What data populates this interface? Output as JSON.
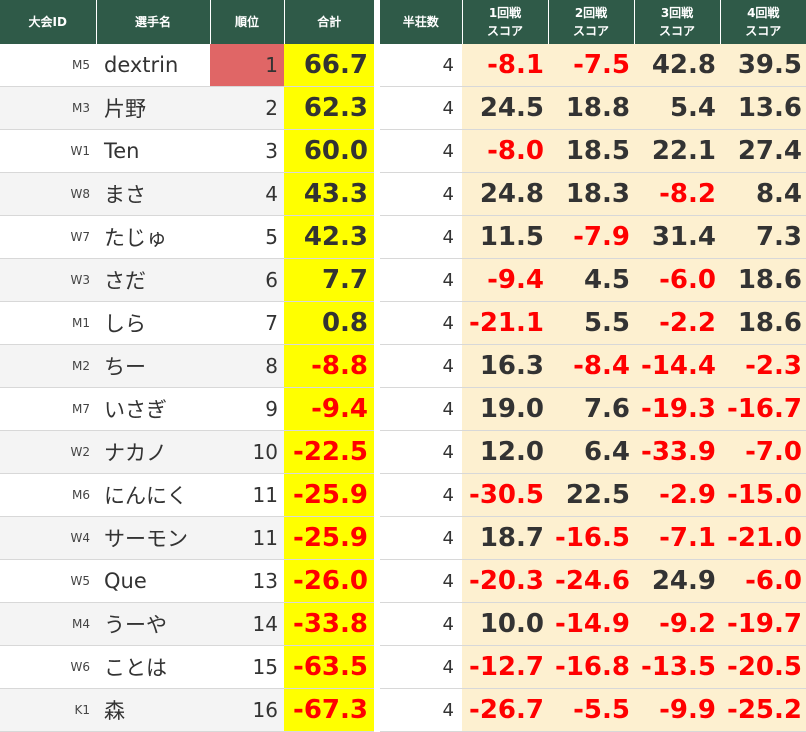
{
  "left_headers": {
    "event_id": "大会ID",
    "player_name": "選手名",
    "rank": "順位",
    "total": "合計"
  },
  "right_headers": {
    "games": "半荘数",
    "rounds": [
      {
        "line1": "1回戦",
        "line2": "スコア"
      },
      {
        "line1": "2回戦",
        "line2": "スコア"
      },
      {
        "line1": "3回戦",
        "line2": "スコア"
      },
      {
        "line1": "4回戦",
        "line2": "スコア"
      }
    ]
  },
  "colors": {
    "header_bg": "#2f5a48",
    "total_bg": "#ffff00",
    "score_bg": "#fdf0d0",
    "first_rank_bg": "#e06666",
    "negative_text": "#ff0000"
  },
  "rows": [
    {
      "id": "M5",
      "name": "dextrin",
      "rank": "1",
      "total": "66.7",
      "games": "4",
      "scores": [
        "-8.1",
        "-7.5",
        "42.8",
        "39.5"
      ]
    },
    {
      "id": "M3",
      "name": "片野",
      "rank": "2",
      "total": "62.3",
      "games": "4",
      "scores": [
        "24.5",
        "18.8",
        "5.4",
        "13.6"
      ]
    },
    {
      "id": "W1",
      "name": "Ten",
      "rank": "3",
      "total": "60.0",
      "games": "4",
      "scores": [
        "-8.0",
        "18.5",
        "22.1",
        "27.4"
      ]
    },
    {
      "id": "W8",
      "name": "まさ",
      "rank": "4",
      "total": "43.3",
      "games": "4",
      "scores": [
        "24.8",
        "18.3",
        "-8.2",
        "8.4"
      ]
    },
    {
      "id": "W7",
      "name": "たじゅ",
      "rank": "5",
      "total": "42.3",
      "games": "4",
      "scores": [
        "11.5",
        "-7.9",
        "31.4",
        "7.3"
      ]
    },
    {
      "id": "W3",
      "name": "さだ",
      "rank": "6",
      "total": "7.7",
      "games": "4",
      "scores": [
        "-9.4",
        "4.5",
        "-6.0",
        "18.6"
      ]
    },
    {
      "id": "M1",
      "name": "しら",
      "rank": "7",
      "total": "0.8",
      "games": "4",
      "scores": [
        "-21.1",
        "5.5",
        "-2.2",
        "18.6"
      ]
    },
    {
      "id": "M2",
      "name": "ちー",
      "rank": "8",
      "total": "-8.8",
      "games": "4",
      "scores": [
        "16.3",
        "-8.4",
        "-14.4",
        "-2.3"
      ]
    },
    {
      "id": "M7",
      "name": "いさぎ",
      "rank": "9",
      "total": "-9.4",
      "games": "4",
      "scores": [
        "19.0",
        "7.6",
        "-19.3",
        "-16.7"
      ]
    },
    {
      "id": "W2",
      "name": "ナカノ",
      "rank": "10",
      "total": "-22.5",
      "games": "4",
      "scores": [
        "12.0",
        "6.4",
        "-33.9",
        "-7.0"
      ]
    },
    {
      "id": "M6",
      "name": "にんにく",
      "rank": "11",
      "total": "-25.9",
      "games": "4",
      "scores": [
        "-30.5",
        "22.5",
        "-2.9",
        "-15.0"
      ]
    },
    {
      "id": "W4",
      "name": "サーモン",
      "rank": "11",
      "total": "-25.9",
      "games": "4",
      "scores": [
        "18.7",
        "-16.5",
        "-7.1",
        "-21.0"
      ]
    },
    {
      "id": "W5",
      "name": "Que",
      "rank": "13",
      "total": "-26.0",
      "games": "4",
      "scores": [
        "-20.3",
        "-24.6",
        "24.9",
        "-6.0"
      ]
    },
    {
      "id": "M4",
      "name": "うーや",
      "rank": "14",
      "total": "-33.8",
      "games": "4",
      "scores": [
        "10.0",
        "-14.9",
        "-9.2",
        "-19.7"
      ]
    },
    {
      "id": "W6",
      "name": "ことは",
      "rank": "15",
      "total": "-63.5",
      "games": "4",
      "scores": [
        "-12.7",
        "-16.8",
        "-13.5",
        "-20.5"
      ]
    },
    {
      "id": "K1",
      "name": "森",
      "rank": "16",
      "total": "-67.3",
      "games": "4",
      "scores": [
        "-26.7",
        "-5.5",
        "-9.9",
        "-25.2"
      ]
    }
  ]
}
